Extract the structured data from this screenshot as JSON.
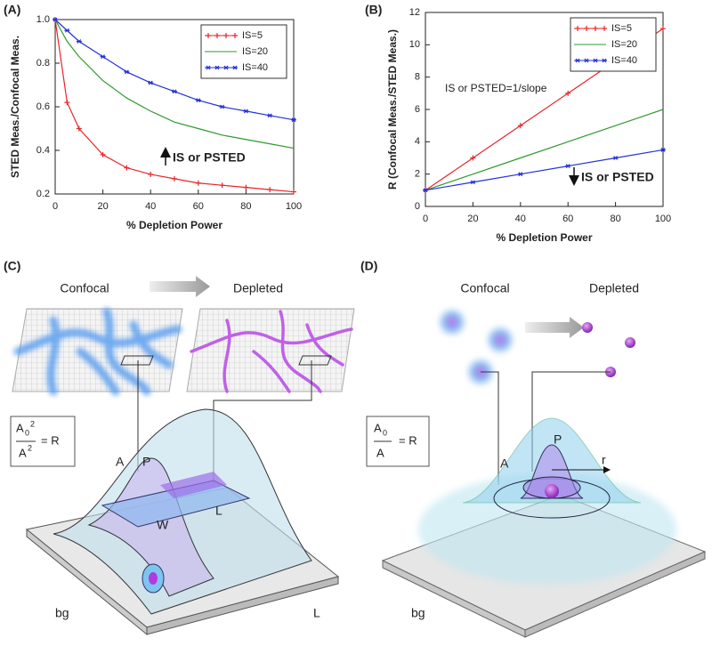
{
  "chart_data": [
    {
      "type": "line",
      "panel": "(A)",
      "xlabel": "% Depletion Power",
      "ylabel": "STED Meas./Confocal Meas.",
      "x": [
        0,
        5,
        10,
        20,
        30,
        40,
        50,
        60,
        70,
        80,
        90,
        100
      ],
      "series": [
        {
          "name": "IS=5",
          "color": "#e8262a",
          "marker": "plus",
          "values": [
            1.0,
            0.62,
            0.5,
            0.38,
            0.32,
            0.29,
            0.27,
            0.25,
            0.24,
            0.23,
            0.22,
            0.21
          ]
        },
        {
          "name": "IS=20",
          "color": "#2e9a2e",
          "marker": null,
          "values": [
            1.0,
            0.9,
            0.83,
            0.72,
            0.64,
            0.58,
            0.53,
            0.5,
            0.47,
            0.45,
            0.43,
            0.41
          ]
        },
        {
          "name": "IS=40",
          "color": "#2431d8",
          "marker": "star",
          "values": [
            1.0,
            0.95,
            0.9,
            0.83,
            0.76,
            0.71,
            0.67,
            0.63,
            0.6,
            0.58,
            0.56,
            0.54
          ]
        }
      ],
      "xlim": [
        0,
        100
      ],
      "xticks": [
        0,
        20,
        40,
        60,
        80,
        100
      ],
      "ylim": [
        0.2,
        1.0
      ],
      "yticks": [
        0.2,
        0.4,
        0.6,
        0.8,
        {
          "value": 1.0,
          "label": "1.0"
        }
      ],
      "legend": "upper right",
      "annotations": [
        {
          "text": "IS or PSTED",
          "arrow": "up"
        }
      ]
    },
    {
      "type": "line",
      "panel": "(B)",
      "xlabel": "% Depletion Power",
      "ylabel": "R (Confocal Meas./STED Meas.)",
      "x": [
        0,
        20,
        40,
        60,
        80,
        100
      ],
      "series": [
        {
          "name": "IS=5",
          "color": "#e8262a",
          "marker": "plus",
          "values": [
            1,
            3,
            5,
            7,
            9,
            11
          ]
        },
        {
          "name": "IS=20",
          "color": "#2e9a2e",
          "marker": null,
          "values": [
            1,
            2,
            3,
            4,
            5,
            6
          ]
        },
        {
          "name": "IS=40",
          "color": "#2431d8",
          "marker": "star",
          "values": [
            1,
            1.5,
            2,
            2.5,
            3,
            3.5
          ]
        }
      ],
      "xlim": [
        0,
        100
      ],
      "xticks": [
        0,
        20,
        40,
        60,
        80,
        100
      ],
      "ylim": [
        0,
        12
      ],
      "yticks": [
        0,
        2,
        4,
        6,
        8,
        10,
        12
      ],
      "legend": "upper right",
      "annotations": [
        {
          "text": "IS or PSTED=1/slope",
          "arrow": null
        },
        {
          "text": "IS or PSTED",
          "arrow": "down"
        }
      ]
    }
  ],
  "diagrams": [
    {
      "panel": "(C)",
      "left": "Confocal",
      "right": "Depleted",
      "formula": {
        "numerator": "A",
        "numerator_sub": "0",
        "numerator_sup": "2",
        "denominator": "A",
        "denominator_sup": "2",
        "equals": "= R"
      },
      "labels": {
        "a": "A",
        "p": "P",
        "w": "W",
        "l": "L",
        "bg": "bg",
        "l2": "L"
      }
    },
    {
      "panel": "(D)",
      "left": "Confocal",
      "right": "Depleted",
      "formula": {
        "numerator": "A",
        "numerator_sub": "0",
        "denominator": "A",
        "equals": "= R"
      },
      "labels": {
        "p": "P",
        "a": "A",
        "r": "r",
        "bg": "bg"
      }
    }
  ]
}
